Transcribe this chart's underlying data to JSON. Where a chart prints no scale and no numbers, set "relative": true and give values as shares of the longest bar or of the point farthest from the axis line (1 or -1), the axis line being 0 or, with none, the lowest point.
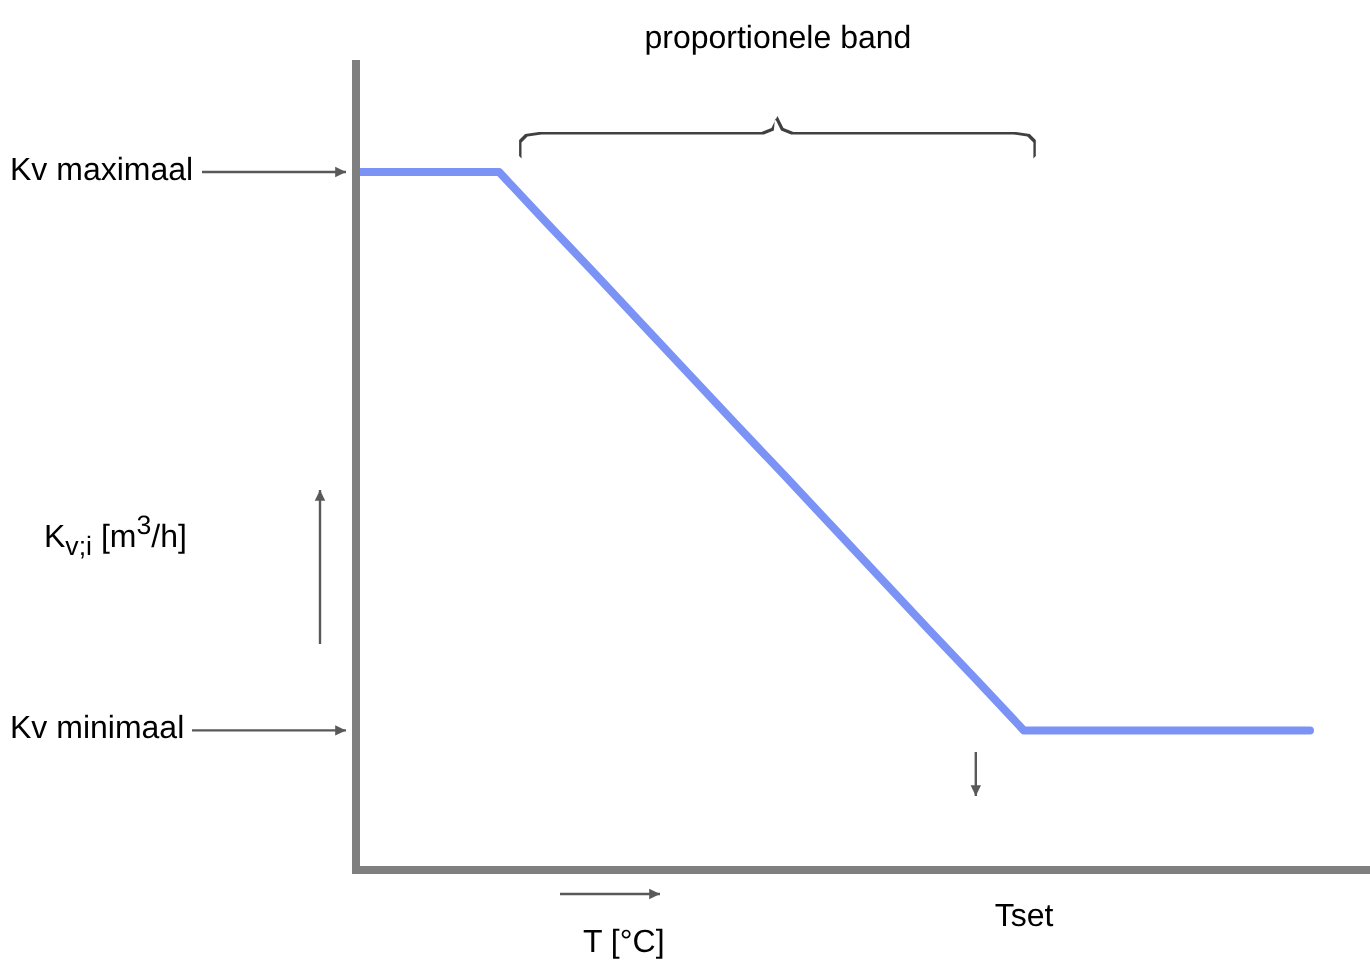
{
  "chart_data": {
    "type": "line",
    "relative": true,
    "xlabel": "T [°C]",
    "categories": [
      null,
      null,
      null,
      null,
      null,
      null,
      null,
      null,
      null,
      null,
      null,
      null,
      null,
      null,
      null,
      null,
      null,
      null,
      null,
      null,
      null
    ],
    "series": [
      {
        "color": "#7b93f5",
        "values": [
          1,
          1,
          1,
          1,
          0.927,
          0.855,
          0.782,
          0.709,
          0.636,
          0.564,
          0.491,
          0.418,
          0.345,
          0.273,
          0.2,
          0.2,
          0.2,
          0.2,
          0.2,
          0.2,
          0.2
        ]
      }
    ],
    "annotations": [
      "Kv maximaal",
      "Kv minimaal",
      "proportionele band",
      "Tset",
      "K$_{v;i}$ [m$^{3}$/h]"
    ],
    "marker": "none",
    "line_style": "solid"
  }
}
